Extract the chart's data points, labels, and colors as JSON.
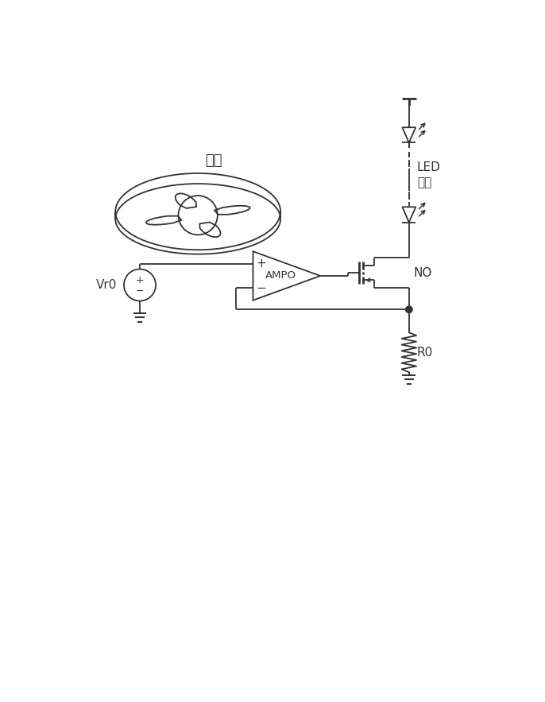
{
  "bg_color": "#ffffff",
  "line_color": "#333333",
  "text_color": "#333333",
  "fan_label": "风扇",
  "led_label1": "LED",
  "led_label2": "灯串",
  "amp_label": "AMPO",
  "vr0_label": "Vr0",
  "no_label": "NO",
  "r0_label": "R0",
  "figsize": [
    6.86,
    8.83
  ],
  "dpi": 100
}
